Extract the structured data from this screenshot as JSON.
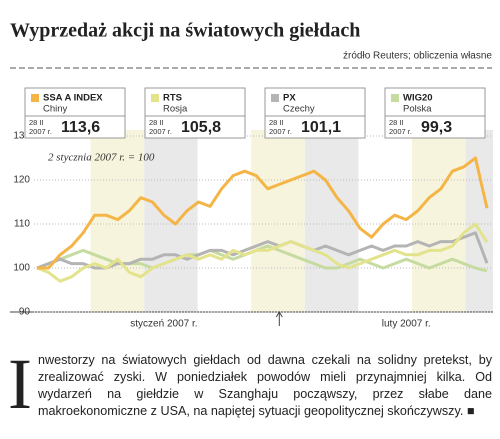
{
  "chart_data": {
    "type": "line",
    "title": "Wyprzedaż akcji na światowych giełdach",
    "source": "źródło Reuters; obliczenia własne",
    "annotation": "2 stycznia 2007 r. = 100",
    "categories": [
      null,
      null,
      null,
      null,
      null,
      null,
      null,
      null,
      null,
      null,
      null,
      "styczeń 2007 r.",
      null,
      null,
      null,
      null,
      null,
      null,
      null,
      null,
      null,
      null,
      null,
      null,
      null,
      null,
      null,
      null,
      null,
      null,
      null,
      null,
      "luty 2007 r.",
      null,
      null,
      null,
      null,
      null,
      null,
      null
    ],
    "ylim": [
      90,
      130
    ],
    "yticks": [
      90,
      100,
      110,
      120,
      130
    ],
    "grid": true,
    "series": [
      {
        "name": "SSA A INDEX",
        "sub": "Chiny",
        "date_lines": [
          "28 II",
          "2007 r."
        ],
        "color": "#f5b446",
        "values": [
          100,
          100,
          103,
          105,
          108,
          112,
          112,
          111,
          113,
          116,
          115,
          112,
          110,
          113,
          115,
          114,
          118,
          121,
          122,
          121,
          118,
          119,
          120,
          121,
          122,
          120,
          116,
          113,
          109,
          107,
          110,
          112,
          111,
          113,
          116,
          118,
          122,
          123,
          125,
          113.6
        ],
        "value_labels": [
          null,
          null,
          null,
          null,
          null,
          null,
          null,
          null,
          null,
          null,
          null,
          null,
          null,
          null,
          null,
          null,
          null,
          null,
          null,
          null,
          null,
          null,
          null,
          null,
          null,
          null,
          null,
          null,
          null,
          null,
          null,
          null,
          null,
          null,
          null,
          null,
          null,
          null,
          null,
          "113,6"
        ]
      },
      {
        "name": "RTS",
        "sub": "Rosja",
        "date_lines": [
          "28 II",
          "2007 r."
        ],
        "color": "#e3e38c",
        "values": [
          100,
          99,
          97,
          98,
          100,
          101,
          100,
          102,
          99,
          98,
          100,
          101,
          102,
          103,
          102,
          103,
          102,
          104,
          103,
          104,
          104,
          105,
          106,
          105,
          104,
          103,
          101,
          100,
          101,
          102,
          103,
          104,
          103,
          103,
          104,
          104,
          105,
          108,
          110,
          105.8
        ],
        "value_labels": [
          null,
          null,
          null,
          null,
          null,
          null,
          null,
          null,
          null,
          null,
          null,
          null,
          null,
          null,
          null,
          null,
          null,
          null,
          null,
          null,
          null,
          null,
          null,
          null,
          null,
          null,
          null,
          null,
          null,
          null,
          null,
          null,
          null,
          null,
          null,
          null,
          null,
          null,
          null,
          "105,8"
        ]
      },
      {
        "name": "PX",
        "sub": "Czechy",
        "date_lines": [
          "28 II",
          "2007 r."
        ],
        "color": "#b4b4b4",
        "values": [
          100,
          101,
          102,
          101,
          101,
          100,
          100,
          101,
          101,
          102,
          102,
          103,
          103,
          102,
          103,
          104,
          104,
          103,
          104,
          105,
          106,
          105,
          106,
          105,
          104,
          105,
          104,
          103,
          104,
          105,
          104,
          105,
          105,
          106,
          105,
          106,
          106,
          107,
          108,
          101.1
        ],
        "value_labels": [
          null,
          null,
          null,
          null,
          null,
          null,
          null,
          null,
          null,
          null,
          null,
          null,
          null,
          null,
          null,
          null,
          null,
          null,
          null,
          null,
          null,
          null,
          null,
          null,
          null,
          null,
          null,
          null,
          null,
          null,
          null,
          null,
          null,
          null,
          null,
          null,
          null,
          null,
          null,
          "101,1"
        ]
      },
      {
        "name": "WIG20",
        "sub": "Polska",
        "date_lines": [
          "28 II",
          "2007 r."
        ],
        "color": "#c6dba0",
        "values": [
          100,
          101,
          102,
          103,
          104,
          103,
          102,
          101,
          101,
          101,
          100,
          101,
          102,
          103,
          103,
          104,
          103,
          102,
          103,
          104,
          105,
          104,
          103,
          102,
          101,
          100,
          100,
          101,
          102,
          101,
          100,
          101,
          102,
          101,
          100,
          101,
          102,
          101,
          100,
          99.3
        ],
        "value_labels": [
          null,
          null,
          null,
          null,
          null,
          null,
          null,
          null,
          null,
          null,
          null,
          null,
          null,
          null,
          null,
          null,
          null,
          null,
          null,
          null,
          null,
          null,
          null,
          null,
          null,
          null,
          null,
          null,
          null,
          null,
          null,
          null,
          null,
          null,
          null,
          null,
          null,
          null,
          null,
          "99,3"
        ]
      }
    ]
  },
  "article": {
    "drop_cap": "I",
    "text": "nwestorzy na światowych giełdach od dawna czekali na solidny pretekst, by zrealizować zyski. W poniedziałek powodów mieli przynajmniej kilka. Od wydarzeń na giełdzie w Szanghaju począwszy, przez słabe dane makroekonomiczne z USA, na napiętej sytuacji geopolitycznej skończywszy."
  }
}
